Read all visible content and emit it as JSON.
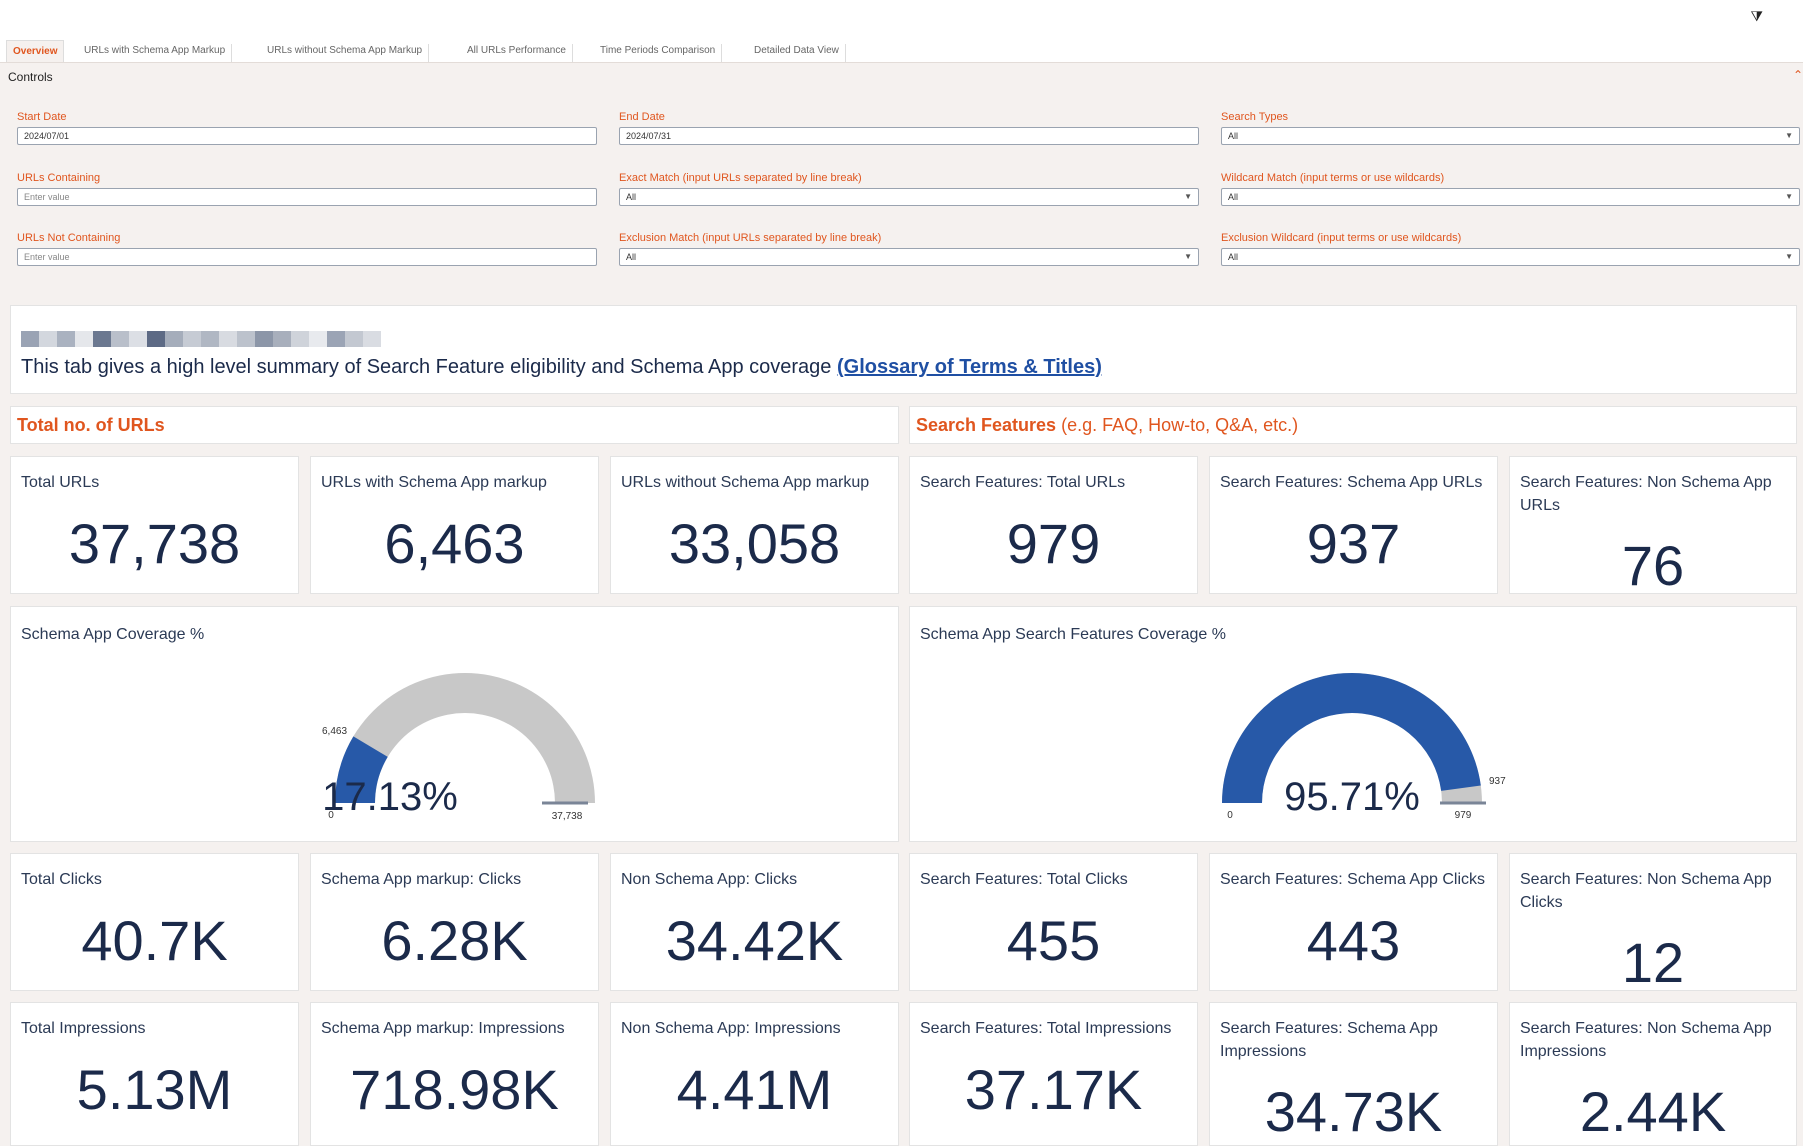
{
  "tabs": [
    {
      "label": "Overview",
      "active": true
    },
    {
      "label": "URLs with Schema App Markup"
    },
    {
      "label": "URLs without Schema App Markup"
    },
    {
      "label": "All URLs Performance"
    },
    {
      "label": "Time Periods Comparison"
    },
    {
      "label": "Detailed Data View"
    }
  ],
  "controls": {
    "title": "Controls",
    "start_date": {
      "label": "Start Date",
      "value": "2024/07/01"
    },
    "end_date": {
      "label": "End Date",
      "value": "2024/07/31"
    },
    "search_types": {
      "label": "Search Types",
      "value": "All"
    },
    "urls_containing": {
      "label": "URLs Containing",
      "placeholder": "Enter value"
    },
    "exact_match": {
      "label": "Exact Match (input URLs separated by line break)",
      "value": "All"
    },
    "wildcard_match": {
      "label": "Wildcard Match (input terms or use wildcards)",
      "value": "All"
    },
    "urls_not_containing": {
      "label": "URLs Not Containing",
      "placeholder": "Enter value"
    },
    "exclusion_match": {
      "label": "Exclusion Match (input URLs separated by line break)",
      "value": "All"
    },
    "exclusion_wildcard": {
      "label": "Exclusion Wildcard (input terms or use wildcards)",
      "value": "All"
    }
  },
  "intro": {
    "text": "This tab gives a high level summary of Search Feature eligibility and Schema App coverage ",
    "link": "(Glossary of Terms & Titles)"
  },
  "sections": {
    "left": {
      "title": "Total no. of URLs"
    },
    "right": {
      "title": "Search Features",
      "subtitle": " (e.g. FAQ, How-to, Q&A, etc.)"
    }
  },
  "kpis": {
    "row1": [
      {
        "title": "Total URLs",
        "value": "37,738"
      },
      {
        "title": "URLs with Schema App markup",
        "value": "6,463"
      },
      {
        "title": "URLs without Schema App markup",
        "value": "33,058"
      },
      {
        "title": "Search Features: Total URLs",
        "value": "979"
      },
      {
        "title": "Search Features: Schema App URLs",
        "value": "937"
      },
      {
        "title": "Search Features: Non Schema App URLs",
        "value": "76"
      }
    ],
    "row2": [
      {
        "title": "Total Clicks",
        "value": "40.7K"
      },
      {
        "title": "Schema App markup: Clicks",
        "value": "6.28K"
      },
      {
        "title": "Non Schema App: Clicks",
        "value": "34.42K"
      },
      {
        "title": "Search Features: Total Clicks",
        "value": "455"
      },
      {
        "title": "Search Features: Schema App Clicks",
        "value": "443"
      },
      {
        "title": "Search Features: Non Schema App Clicks",
        "value": "12"
      }
    ],
    "row3": [
      {
        "title": "Total Impressions",
        "value": "5.13M"
      },
      {
        "title": "Schema App markup: Impressions",
        "value": "718.98K"
      },
      {
        "title": "Non Schema App: Impressions",
        "value": "4.41M"
      },
      {
        "title": "Search Features: Total Impressions",
        "value": "37.17K"
      },
      {
        "title": "Search Features: Schema App Impressions",
        "value": "34.73K"
      },
      {
        "title": "Search Features: Non Schema App Impressions",
        "value": "2.44K"
      }
    ]
  },
  "gauges": [
    {
      "title": "Schema App Coverage %",
      "value": 6463,
      "max": 37738,
      "min_label": "0",
      "max_label": "37,738",
      "value_label": "6,463",
      "pct_label": "17.13%"
    },
    {
      "title": "Schema App Search Features Coverage %",
      "value": 937,
      "max": 979,
      "min_label": "0",
      "max_label": "979",
      "value_label": "937",
      "pct_label": "95.71%"
    }
  ],
  "colors": {
    "accent": "#e0561f",
    "gauge_fill": "#2759a8",
    "gauge_track": "#c8c8c8",
    "value_text": "#1b2a4a",
    "link": "#1f4fa3"
  }
}
